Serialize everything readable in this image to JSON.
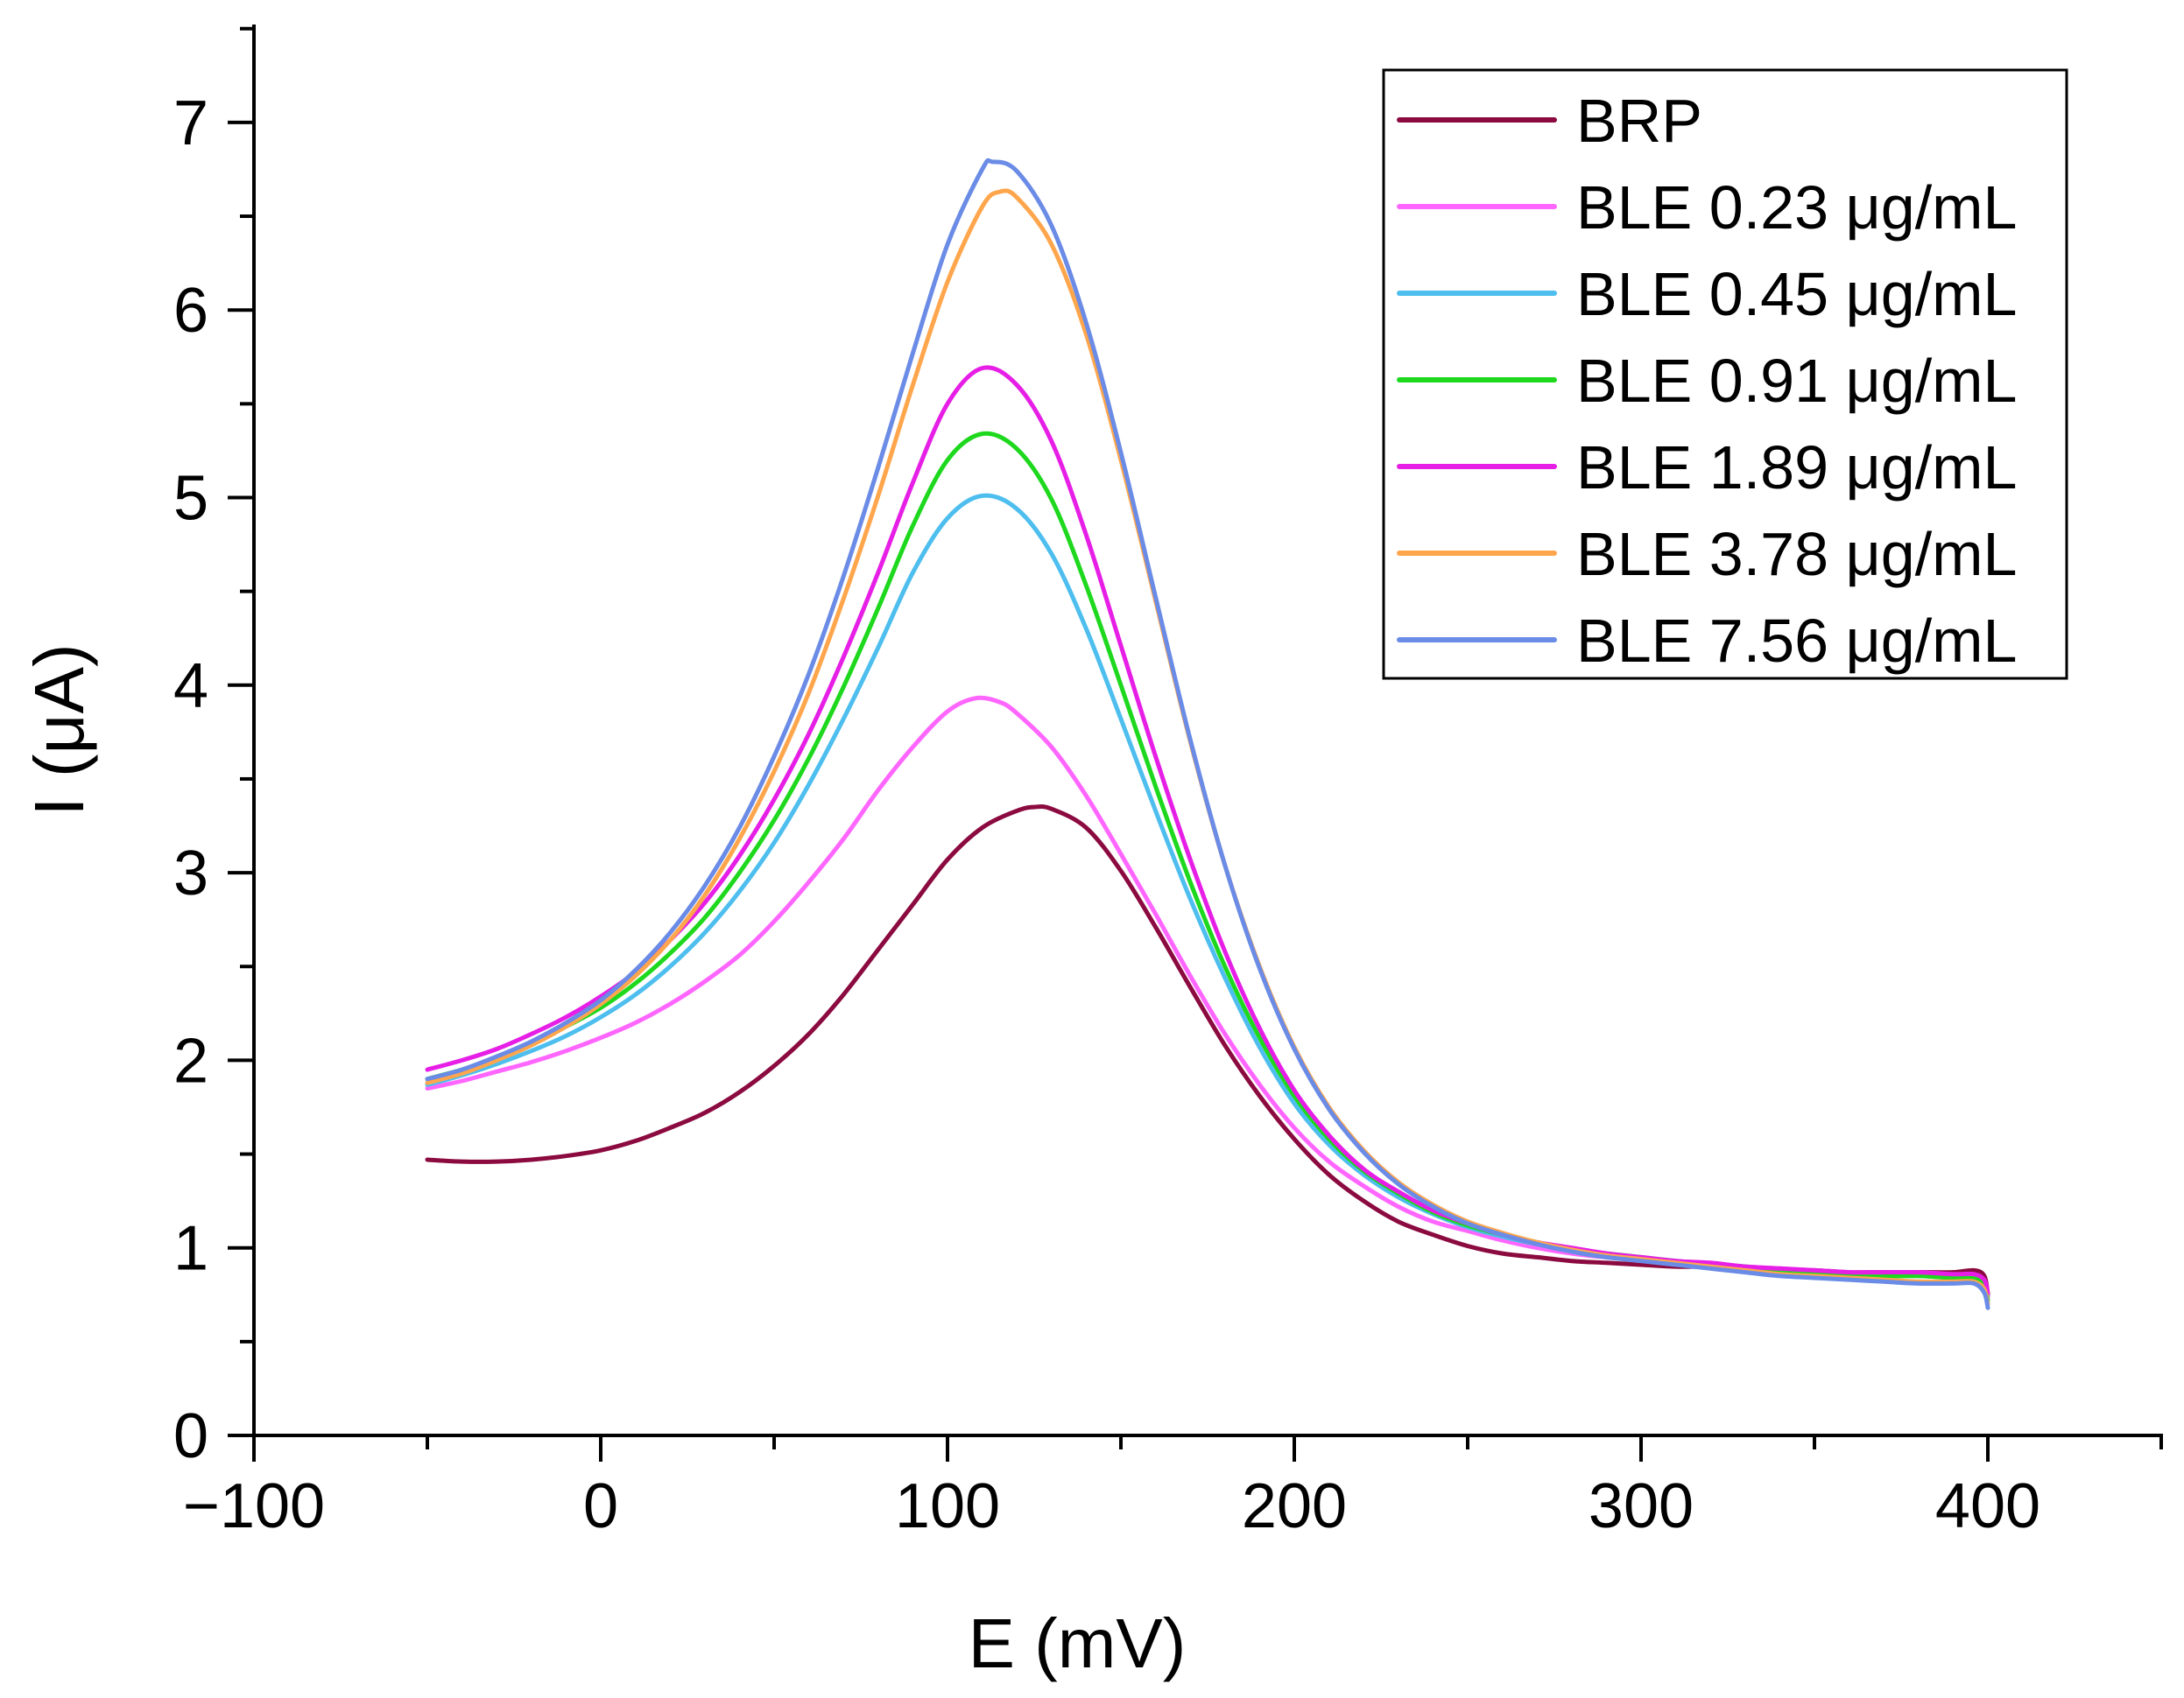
{
  "chart_data": {
    "type": "line",
    "title": "",
    "xlabel": "E (mV)",
    "ylabel": "I (μA)",
    "xlim": [
      -100,
      450
    ],
    "ylim": [
      0,
      7.5
    ],
    "x_ticks": [
      -100,
      0,
      100,
      200,
      300,
      400
    ],
    "x_tick_labels": [
      "−100",
      "0",
      "100",
      "200",
      "300",
      "400"
    ],
    "y_ticks": [
      0,
      1,
      2,
      3,
      4,
      5,
      6,
      7
    ],
    "y_tick_labels": [
      "0",
      "1",
      "2",
      "3",
      "4",
      "5",
      "6",
      "7"
    ],
    "legend_position": "top-right",
    "grid": false,
    "series": [
      {
        "name": "BRP",
        "color": "#8B0A3F",
        "x": [
          -50,
          -40,
          -30,
          -20,
          -10,
          0,
          10,
          20,
          30,
          40,
          50,
          60,
          70,
          80,
          90,
          100,
          110,
          120,
          125,
          130,
          140,
          150,
          160,
          170,
          180,
          190,
          200,
          210,
          220,
          230,
          240,
          250,
          260,
          270,
          280,
          290,
          300,
          310,
          320,
          330,
          340,
          350,
          360,
          370,
          380,
          390,
          396,
          399,
          400
        ],
        "values": [
          1.47,
          1.46,
          1.46,
          1.47,
          1.49,
          1.52,
          1.57,
          1.64,
          1.72,
          1.83,
          1.97,
          2.14,
          2.35,
          2.59,
          2.83,
          3.07,
          3.24,
          3.33,
          3.35,
          3.34,
          3.24,
          3.01,
          2.71,
          2.39,
          2.08,
          1.81,
          1.58,
          1.39,
          1.25,
          1.14,
          1.07,
          1.01,
          0.97,
          0.95,
          0.93,
          0.92,
          0.91,
          0.9,
          0.9,
          0.89,
          0.88,
          0.88,
          0.87,
          0.87,
          0.87,
          0.87,
          0.88,
          0.85,
          0.75
        ]
      },
      {
        "name": "BLE 0.23 μg/mL",
        "color": "#FF66FF",
        "x": [
          -50,
          -40,
          -30,
          -20,
          -10,
          0,
          10,
          20,
          30,
          40,
          50,
          60,
          70,
          80,
          90,
          100,
          108,
          115,
          120,
          130,
          140,
          150,
          160,
          170,
          180,
          190,
          200,
          210,
          220,
          230,
          240,
          250,
          260,
          270,
          280,
          290,
          300,
          310,
          320,
          330,
          340,
          350,
          360,
          370,
          380,
          390,
          396,
          399,
          400
        ],
        "values": [
          1.85,
          1.89,
          1.94,
          1.99,
          2.05,
          2.12,
          2.2,
          2.3,
          2.42,
          2.56,
          2.74,
          2.95,
          3.18,
          3.44,
          3.67,
          3.86,
          3.93,
          3.91,
          3.85,
          3.67,
          3.41,
          3.1,
          2.78,
          2.45,
          2.14,
          1.87,
          1.64,
          1.46,
          1.33,
          1.22,
          1.14,
          1.09,
          1.04,
          1.0,
          0.97,
          0.95,
          0.94,
          0.92,
          0.91,
          0.9,
          0.89,
          0.88,
          0.87,
          0.86,
          0.86,
          0.85,
          0.85,
          0.82,
          0.74
        ]
      },
      {
        "name": "BLE 0.45 μg/mL",
        "color": "#4DBEEE",
        "x": [
          -50,
          -40,
          -30,
          -20,
          -10,
          0,
          10,
          20,
          30,
          40,
          50,
          60,
          70,
          80,
          90,
          100,
          110,
          120,
          130,
          140,
          150,
          160,
          170,
          180,
          190,
          200,
          210,
          220,
          230,
          240,
          250,
          260,
          270,
          280,
          290,
          300,
          310,
          320,
          330,
          340,
          350,
          360,
          370,
          380,
          390,
          396,
          399,
          400
        ],
        "values": [
          1.87,
          1.92,
          1.98,
          2.05,
          2.13,
          2.23,
          2.35,
          2.5,
          2.68,
          2.9,
          3.16,
          3.47,
          3.82,
          4.2,
          4.6,
          4.89,
          5.01,
          4.94,
          4.7,
          4.3,
          3.82,
          3.33,
          2.86,
          2.44,
          2.07,
          1.77,
          1.55,
          1.39,
          1.27,
          1.18,
          1.11,
          1.06,
          1.02,
          0.99,
          0.96,
          0.94,
          0.93,
          0.91,
          0.9,
          0.88,
          0.87,
          0.86,
          0.85,
          0.85,
          0.84,
          0.84,
          0.8,
          0.72
        ]
      },
      {
        "name": "BLE 0.91 μg/mL",
        "color": "#1ED81E",
        "x": [
          -50,
          -40,
          -30,
          -20,
          -10,
          0,
          10,
          20,
          30,
          40,
          50,
          60,
          70,
          80,
          90,
          100,
          110,
          120,
          130,
          140,
          150,
          160,
          170,
          180,
          190,
          200,
          210,
          220,
          230,
          240,
          250,
          260,
          270,
          280,
          290,
          300,
          310,
          320,
          330,
          340,
          350,
          360,
          370,
          380,
          390,
          396,
          399,
          400
        ],
        "values": [
          1.9,
          1.95,
          2.01,
          2.09,
          2.18,
          2.28,
          2.41,
          2.57,
          2.76,
          3.0,
          3.28,
          3.61,
          3.99,
          4.41,
          4.85,
          5.2,
          5.34,
          5.26,
          4.99,
          4.53,
          4.0,
          3.46,
          2.95,
          2.5,
          2.12,
          1.81,
          1.58,
          1.41,
          1.29,
          1.19,
          1.12,
          1.07,
          1.03,
          0.99,
          0.97,
          0.95,
          0.93,
          0.91,
          0.9,
          0.88,
          0.87,
          0.86,
          0.85,
          0.85,
          0.84,
          0.84,
          0.8,
          0.72
        ]
      },
      {
        "name": "BLE 1.89 μg/mL",
        "color": "#E61EE6",
        "x": [
          -50,
          -40,
          -30,
          -20,
          -10,
          0,
          10,
          20,
          30,
          40,
          50,
          60,
          70,
          80,
          90,
          100,
          110,
          120,
          130,
          140,
          150,
          160,
          170,
          180,
          190,
          200,
          210,
          220,
          230,
          240,
          250,
          260,
          270,
          280,
          290,
          300,
          310,
          320,
          330,
          340,
          350,
          360,
          370,
          380,
          390,
          396,
          399,
          400
        ],
        "values": [
          1.95,
          2.0,
          2.06,
          2.14,
          2.23,
          2.34,
          2.47,
          2.64,
          2.84,
          3.09,
          3.39,
          3.74,
          4.15,
          4.6,
          5.08,
          5.5,
          5.69,
          5.6,
          5.3,
          4.8,
          4.21,
          3.62,
          3.07,
          2.58,
          2.17,
          1.84,
          1.6,
          1.42,
          1.3,
          1.2,
          1.13,
          1.07,
          1.03,
          1.0,
          0.97,
          0.95,
          0.93,
          0.92,
          0.9,
          0.89,
          0.88,
          0.87,
          0.87,
          0.87,
          0.86,
          0.86,
          0.83,
          0.76
        ]
      },
      {
        "name": "BLE 3.78 μg/mL",
        "color": "#FFA64D",
        "x": [
          -50,
          -40,
          -30,
          -20,
          -10,
          0,
          10,
          20,
          30,
          40,
          50,
          60,
          70,
          80,
          90,
          100,
          110,
          115,
          120,
          130,
          140,
          150,
          160,
          170,
          180,
          190,
          200,
          210,
          220,
          230,
          240,
          250,
          260,
          270,
          280,
          290,
          300,
          310,
          320,
          330,
          340,
          350,
          360,
          370,
          380,
          390,
          396,
          399,
          400
        ],
        "values": [
          1.88,
          1.93,
          2.0,
          2.08,
          2.18,
          2.3,
          2.45,
          2.64,
          2.88,
          3.18,
          3.54,
          3.96,
          4.46,
          5.01,
          5.6,
          6.15,
          6.55,
          6.63,
          6.6,
          6.35,
          5.87,
          5.2,
          4.45,
          3.7,
          3.04,
          2.5,
          2.07,
          1.75,
          1.52,
          1.35,
          1.23,
          1.14,
          1.08,
          1.03,
          0.99,
          0.96,
          0.94,
          0.92,
          0.9,
          0.88,
          0.86,
          0.85,
          0.84,
          0.83,
          0.82,
          0.82,
          0.82,
          0.78,
          0.7
        ]
      },
      {
        "name": "BLE 7.56 μg/mL",
        "color": "#6A8BE6",
        "x": [
          -50,
          -40,
          -30,
          -20,
          -10,
          0,
          10,
          20,
          30,
          40,
          50,
          60,
          70,
          80,
          90,
          100,
          110,
          113,
          120,
          130,
          140,
          150,
          160,
          170,
          180,
          190,
          200,
          210,
          220,
          230,
          240,
          250,
          260,
          270,
          280,
          290,
          300,
          310,
          320,
          330,
          340,
          350,
          360,
          370,
          380,
          390,
          396,
          399,
          400
        ],
        "values": [
          1.9,
          1.95,
          2.02,
          2.1,
          2.2,
          2.32,
          2.48,
          2.68,
          2.93,
          3.24,
          3.62,
          4.06,
          4.58,
          5.16,
          5.77,
          6.35,
          6.75,
          6.79,
          6.74,
          6.45,
          5.93,
          5.24,
          4.47,
          3.71,
          3.04,
          2.49,
          2.06,
          1.74,
          1.51,
          1.34,
          1.22,
          1.13,
          1.07,
          1.02,
          0.98,
          0.95,
          0.93,
          0.91,
          0.89,
          0.87,
          0.85,
          0.84,
          0.83,
          0.82,
          0.81,
          0.81,
          0.81,
          0.76,
          0.68
        ]
      }
    ]
  }
}
